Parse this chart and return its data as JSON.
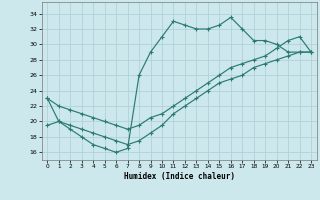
{
  "xlabel": "Humidex (Indice chaleur)",
  "bg_color": "#cce8ec",
  "line_color": "#2a7a72",
  "grid_color": "#aacfd4",
  "xlim": [
    -0.5,
    23.5
  ],
  "ylim": [
    15.0,
    35.5
  ],
  "xticks": [
    0,
    1,
    2,
    3,
    4,
    5,
    6,
    7,
    8,
    9,
    10,
    11,
    12,
    13,
    14,
    15,
    16,
    17,
    18,
    19,
    20,
    21,
    22,
    23
  ],
  "yticks": [
    16,
    18,
    20,
    22,
    24,
    26,
    28,
    30,
    32,
    34
  ],
  "line1_x": [
    0,
    1,
    2,
    3,
    4,
    5,
    6,
    7,
    8,
    9,
    10,
    11,
    12,
    13,
    14,
    15,
    16,
    17,
    18,
    19,
    20,
    21,
    22,
    23
  ],
  "line1_y": [
    23,
    20,
    19,
    18,
    17,
    16.5,
    16,
    16.5,
    26,
    29,
    31,
    33,
    32.5,
    32,
    32,
    32.5,
    33.5,
    32,
    30.5,
    30.5,
    30,
    29,
    29,
    29
  ],
  "line2_x": [
    0,
    1,
    2,
    3,
    4,
    5,
    6,
    7,
    8,
    9,
    10,
    11,
    12,
    13,
    14,
    15,
    16,
    17,
    18,
    19,
    20,
    21,
    22,
    23
  ],
  "line2_y": [
    23,
    22,
    21.5,
    21,
    20.5,
    20,
    19.5,
    19,
    19.5,
    20.5,
    21,
    22,
    23,
    24,
    25,
    26,
    27,
    27.5,
    28,
    28.5,
    29.5,
    30.5,
    31,
    29
  ],
  "line3_x": [
    0,
    1,
    2,
    3,
    4,
    5,
    6,
    7,
    8,
    9,
    10,
    11,
    12,
    13,
    14,
    15,
    16,
    17,
    18,
    19,
    20,
    21,
    22,
    23
  ],
  "line3_y": [
    19.5,
    20,
    19.5,
    19,
    18.5,
    18,
    17.5,
    17,
    17.5,
    18.5,
    19.5,
    21,
    22,
    23,
    24,
    25,
    25.5,
    26,
    27,
    27.5,
    28,
    28.5,
    29,
    29
  ]
}
